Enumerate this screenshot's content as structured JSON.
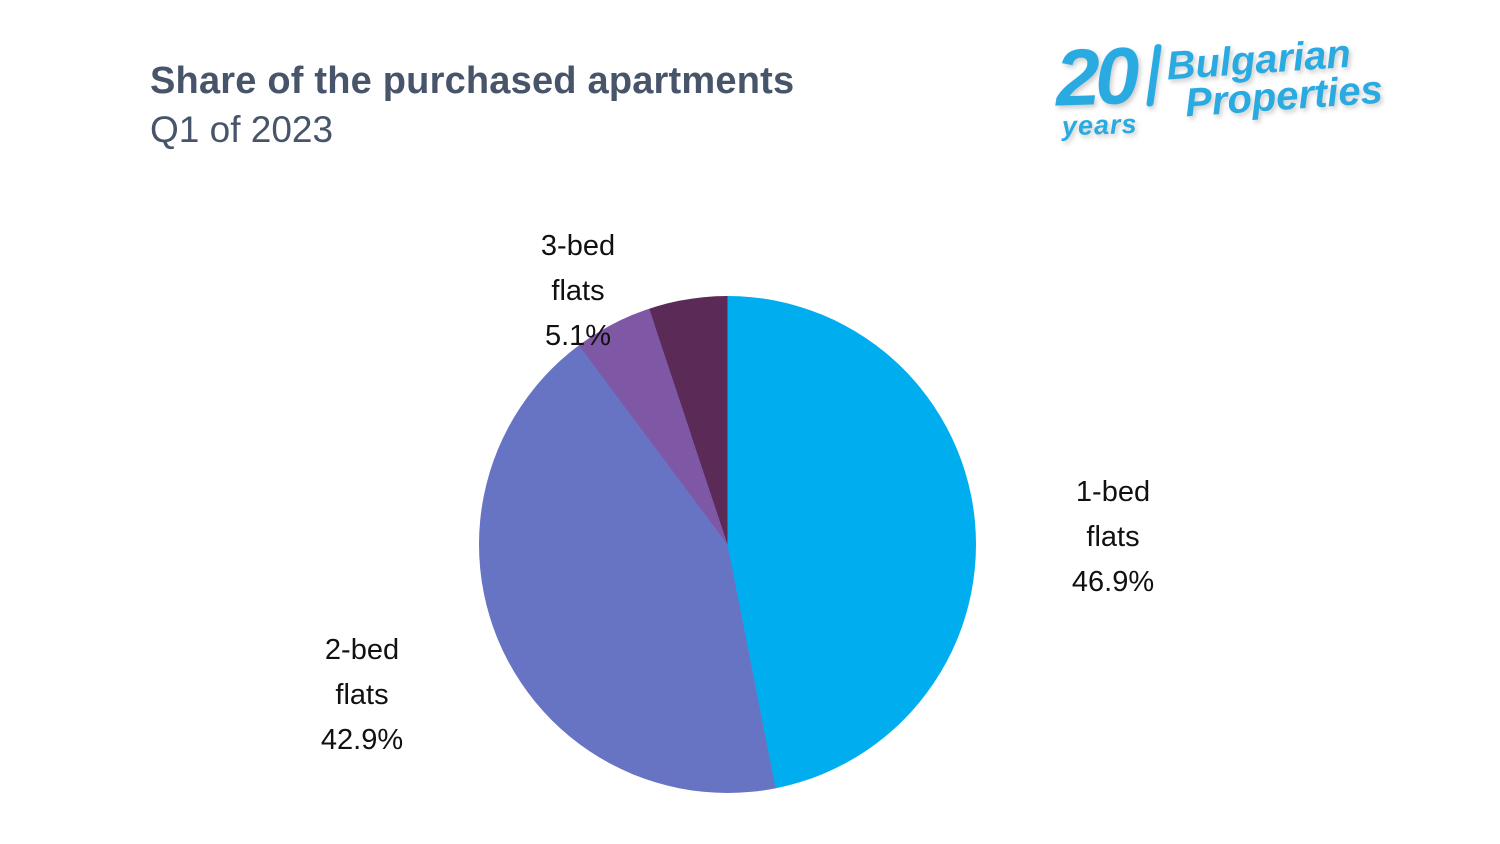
{
  "header": {
    "title": "Share of the purchased apartments",
    "subtitle": "Q1 of 2023"
  },
  "logo": {
    "number": "20",
    "word": "years",
    "brand_line1": "Bulgarian",
    "brand_line2": "Properties",
    "color": "#29ABE2"
  },
  "chart_data": {
    "type": "pie",
    "title": "Share of the purchased apartments",
    "subtitle": "Q1 of 2023",
    "start_angle_deg": 0,
    "direction": "clockwise",
    "legend": "none",
    "background": "#ffffff",
    "slices": [
      {
        "label": "1-bed flats",
        "value": 46.9,
        "percent_label": "46.9%",
        "color": "#00ADEF",
        "display": [
          "1-bed",
          "flats",
          "46.9%"
        ]
      },
      {
        "label": "2-bed flats",
        "value": 42.9,
        "percent_label": "42.9%",
        "color": "#6773C3",
        "display": [
          "2-bed",
          "flats",
          "42.9%"
        ]
      },
      {
        "label": "3-bed flats",
        "value": 5.1,
        "percent_label": "5.1%",
        "color": "#7E58A5",
        "display": [
          "3-bed",
          "flats",
          "5.1%"
        ]
      },
      {
        "label": "",
        "value": 5.1,
        "percent_label": "",
        "color": "#5B2A57",
        "display": []
      }
    ]
  }
}
